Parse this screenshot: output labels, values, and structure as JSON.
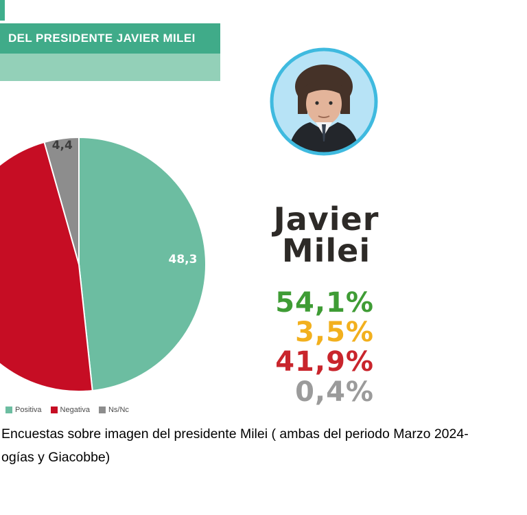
{
  "banner": {
    "title": "DEL PRESIDENTE JAVIER MILEI"
  },
  "chart_data": {
    "type": "pie",
    "title": "DEL PRESIDENTE JAVIER MILEI",
    "labels": [
      "Positiva",
      "Negativa",
      "Ns/Nc"
    ],
    "values": [
      48.3,
      47.3,
      4.4
    ],
    "slice_labels": [
      "48,3",
      "",
      "4,4"
    ],
    "colors": [
      "#6cbda1",
      "#c60d24",
      "#8d8d8d"
    ],
    "label_colors": [
      "#ffffff",
      "",
      "#3d3d3d"
    ],
    "label_radius": [
      0.82,
      0,
      0.95
    ],
    "legend_position": "bottom-left",
    "start_angle_deg": 0,
    "direction": "clockwise"
  },
  "profile": {
    "name_line1": "Javier",
    "name_line2": "Milei",
    "avatar_icon": "milei-portrait"
  },
  "stats": [
    {
      "value": "54,1%",
      "color": "#3f9c35"
    },
    {
      "value": "3,5%",
      "color": "#f2b01e"
    },
    {
      "value": "41,9%",
      "color": "#c9252c"
    },
    {
      "value": "0,4%",
      "color": "#9b9b9b"
    }
  ],
  "caption": {
    "line1": "Encuestas sobre imagen del presidente Milei ( ambas del periodo Marzo 2024-",
    "line2": "ogías y Giacobbe)"
  }
}
